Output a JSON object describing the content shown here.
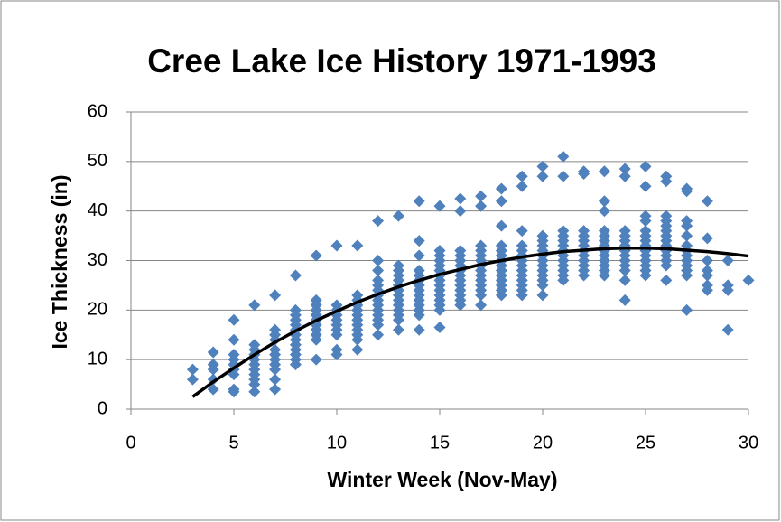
{
  "chart_data": {
    "type": "scatter",
    "title": "Cree Lake Ice History 1971-1993",
    "x_label": "Winter Week (Nov-May)",
    "y_label": "Ice Thickness (in)",
    "xlim": [
      0,
      30
    ],
    "xticks": [
      0,
      5,
      10,
      15,
      20,
      25,
      30
    ],
    "ylim": [
      0,
      60
    ],
    "yticks": [
      0,
      10,
      20,
      30,
      40,
      50,
      60
    ],
    "grid": true,
    "series": [
      {
        "color": "#4f81bd",
        "style": "markers",
        "x": [
          3,
          3,
          4,
          4,
          4,
          4,
          4,
          5,
          5,
          5,
          5,
          5,
          5,
          5,
          5,
          5,
          6,
          6,
          6,
          6,
          6,
          6,
          6,
          6,
          6,
          6,
          6,
          7,
          7,
          7,
          7,
          7,
          7,
          7,
          7,
          7,
          7,
          7,
          8,
          8,
          8,
          8,
          8,
          8,
          8,
          8,
          8,
          8,
          8,
          8,
          8,
          9,
          9,
          9,
          9,
          9,
          9,
          9,
          9,
          9,
          9,
          9,
          10,
          10,
          10,
          10,
          10,
          10,
          10,
          10,
          10,
          10,
          11,
          11,
          11,
          11,
          11,
          11,
          11,
          11,
          11,
          11,
          11,
          11,
          12,
          12,
          12,
          12,
          12,
          12,
          12,
          12,
          12,
          12,
          12,
          12,
          12,
          12,
          13,
          13,
          13,
          13,
          13,
          13,
          13,
          13,
          13,
          13,
          13,
          13,
          13,
          13,
          14,
          14,
          14,
          14,
          14,
          14,
          14,
          14,
          14,
          14,
          14,
          14,
          14,
          14,
          15,
          15,
          15,
          15,
          15,
          15,
          15,
          15,
          15,
          15,
          15,
          15,
          15,
          15,
          15,
          16,
          16,
          16,
          16,
          16,
          16,
          16,
          16,
          16,
          16,
          16,
          16,
          16,
          16,
          17,
          17,
          17,
          17,
          17,
          17,
          17,
          17,
          17,
          17,
          17,
          17,
          17,
          17,
          18,
          18,
          18,
          18,
          18,
          18,
          18,
          18,
          18,
          18,
          18,
          18,
          18,
          18,
          19,
          19,
          19,
          19,
          19,
          19,
          19,
          19,
          19,
          19,
          19,
          19,
          19,
          19,
          20,
          20,
          20,
          20,
          20,
          20,
          20,
          20,
          20,
          20,
          20,
          20,
          20,
          20,
          21,
          21,
          21,
          21,
          21,
          21,
          21,
          21,
          21,
          21,
          21,
          21,
          21,
          22,
          22,
          22,
          22,
          22,
          22,
          22,
          22,
          22,
          22,
          22,
          22,
          23,
          23,
          23,
          23,
          23,
          23,
          23,
          23,
          23,
          23,
          23,
          23,
          23,
          24,
          24,
          24,
          24,
          24,
          24,
          24,
          24,
          24,
          24,
          24,
          24,
          24,
          25,
          25,
          25,
          25,
          25,
          25,
          25,
          25,
          25,
          25,
          25,
          25,
          25,
          25,
          26,
          26,
          26,
          26,
          26,
          26,
          26,
          26,
          26,
          26,
          26,
          26,
          26,
          26,
          27,
          27,
          27,
          27,
          27,
          27,
          27,
          27,
          27,
          27,
          27,
          27,
          27,
          28,
          28,
          28,
          28,
          28,
          28,
          28,
          29,
          29,
          29,
          29,
          30
        ],
        "values": [
          8,
          6,
          11.5,
          9,
          8,
          6,
          4,
          18,
          14,
          11,
          10,
          9,
          8,
          7,
          4,
          3.5,
          21,
          13,
          12,
          11,
          10,
          9,
          8,
          7,
          6,
          5,
          3.5,
          23,
          16,
          15,
          14,
          12,
          11,
          10,
          9,
          8,
          6,
          4,
          27,
          20,
          19,
          18,
          17,
          16,
          15,
          14,
          13,
          12,
          11,
          10,
          9,
          31,
          22,
          21,
          20,
          19,
          18,
          17,
          16,
          15,
          14,
          10,
          33,
          21,
          20,
          19,
          18,
          17,
          16,
          15,
          12,
          11,
          33,
          23,
          22,
          21,
          20,
          19,
          18,
          17,
          16,
          15,
          14,
          12,
          38,
          30,
          28,
          26,
          25,
          24,
          23,
          22,
          21,
          20,
          19,
          18,
          17,
          15,
          39,
          29,
          28,
          27,
          26,
          25,
          24,
          23,
          22,
          21,
          20,
          19,
          18,
          16,
          42,
          34,
          31,
          28,
          27,
          26,
          25,
          24,
          23,
          22,
          21,
          20,
          19,
          16,
          41,
          32,
          31,
          30,
          29,
          28,
          27,
          26,
          25,
          24,
          23,
          22,
          21,
          20,
          16.5,
          42.5,
          40,
          32,
          31,
          30,
          29,
          28,
          27,
          26,
          25,
          24,
          23,
          22,
          21,
          43,
          41,
          33,
          32,
          31,
          30,
          29,
          28,
          27,
          26,
          25,
          24,
          23,
          21,
          44.5,
          42,
          37,
          33,
          32,
          31,
          30,
          29,
          28,
          27,
          26,
          25,
          24,
          23,
          47,
          45,
          36,
          33,
          32,
          31,
          30,
          29,
          28,
          27,
          26,
          25,
          24,
          23,
          49,
          47,
          35,
          34,
          33,
          32,
          31,
          30,
          29,
          28,
          27,
          26,
          25,
          23,
          51,
          47,
          36,
          35,
          34,
          33,
          32,
          31,
          30,
          29,
          28,
          27,
          26,
          48,
          47.5,
          36,
          35,
          34,
          33,
          32,
          31,
          30,
          29,
          28,
          27,
          48,
          42,
          40,
          36,
          35,
          34,
          33,
          32,
          31,
          30,
          29,
          28,
          27,
          48.5,
          47,
          36,
          35,
          34,
          33,
          32,
          31,
          30,
          29,
          28,
          26,
          22,
          49,
          45,
          39,
          38,
          36,
          35,
          34,
          33,
          32,
          31,
          30,
          29,
          28,
          27,
          47,
          46,
          39,
          38,
          37,
          36,
          35,
          34,
          33,
          32,
          31,
          30,
          29,
          26,
          44.5,
          44,
          38,
          37,
          35,
          33,
          32,
          31,
          30,
          29,
          28,
          27,
          20,
          42,
          34.5,
          30,
          28,
          27,
          25,
          24,
          30,
          25,
          24,
          16,
          26
        ]
      },
      {
        "color": "#000000",
        "style": "line",
        "x": [
          3,
          4,
          5,
          6,
          7,
          8,
          9,
          10,
          11,
          12,
          13,
          14,
          15,
          16,
          17,
          18,
          19,
          20,
          21,
          22,
          23,
          24,
          25,
          26,
          27,
          28,
          29,
          30
        ],
        "values": [
          2.5,
          5.5,
          8.3,
          11,
          13.5,
          15.8,
          17.9,
          19.8,
          21.6,
          23.2,
          24.7,
          26,
          27.2,
          28.2,
          29.2,
          30,
          30.7,
          31.3,
          31.8,
          32.1,
          32.4,
          32.5,
          32.5,
          32.4,
          32.1,
          31.8,
          31.4,
          30.9
        ]
      }
    ]
  }
}
